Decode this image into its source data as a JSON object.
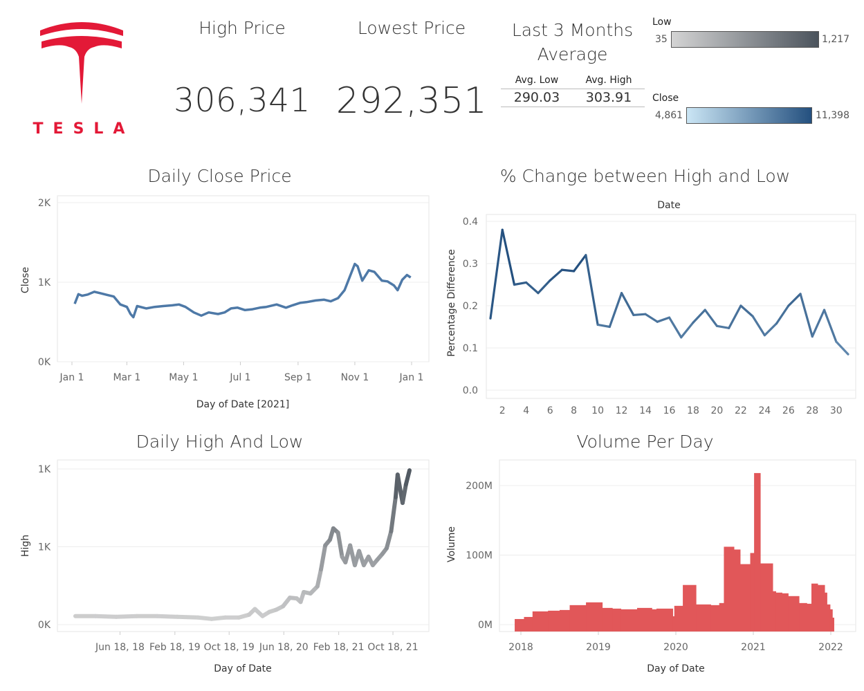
{
  "brand": {
    "wordmark": "TESLA",
    "color": "#e31937"
  },
  "kpis": {
    "high_title": "High Price",
    "high_value": "306,341",
    "low_title": "Lowest Price",
    "low_value": "292,351",
    "avg_title_line1": "Last 3 Months",
    "avg_title_line2": "Average",
    "avg_low_label": "Avg. Low",
    "avg_high_label": "Avg. High",
    "avg_low_value": "290.03",
    "avg_high_value": "303.91"
  },
  "legends": {
    "low": {
      "title": "Low",
      "min": "35",
      "max": "1,217",
      "color_from": "#d4d4d4",
      "color_to": "#4b535c"
    },
    "close": {
      "title": "Close",
      "min": "4,861",
      "max": "11,398",
      "color_from": "#cbe6f5",
      "color_to": "#24507f"
    }
  },
  "chart_data": [
    {
      "id": "close",
      "type": "line",
      "title": "Daily Close Price",
      "xlabel": "Day of Date [2021]",
      "ylabel": "Close",
      "yticks": [
        "0K",
        "1K",
        "2K"
      ],
      "ylim": [
        0,
        2000
      ],
      "xticks": [
        "Jan 1",
        "Mar 1",
        "May 1",
        "Jul 1",
        "Sep 1",
        "Nov 1",
        "Jan 1"
      ],
      "color": "#4e79a7",
      "x": [
        "2021-01-04",
        "2021-01-08",
        "2021-01-12",
        "2021-01-18",
        "2021-01-25",
        "2021-02-01",
        "2021-02-08",
        "2021-02-15",
        "2021-02-22",
        "2021-03-01",
        "2021-03-05",
        "2021-03-08",
        "2021-03-12",
        "2021-03-22",
        "2021-03-31",
        "2021-04-09",
        "2021-04-19",
        "2021-04-26",
        "2021-05-03",
        "2021-05-12",
        "2021-05-20",
        "2021-05-28",
        "2021-06-07",
        "2021-06-14",
        "2021-06-21",
        "2021-06-28",
        "2021-07-06",
        "2021-07-14",
        "2021-07-22",
        "2021-07-29",
        "2021-08-09",
        "2021-08-19",
        "2021-08-26",
        "2021-09-03",
        "2021-09-10",
        "2021-09-20",
        "2021-09-29",
        "2021-10-06",
        "2021-10-14",
        "2021-10-21",
        "2021-10-25",
        "2021-11-01",
        "2021-11-04",
        "2021-11-09",
        "2021-11-16",
        "2021-11-22",
        "2021-11-30",
        "2021-12-06",
        "2021-12-13",
        "2021-12-17",
        "2021-12-22",
        "2021-12-27",
        "2021-12-31"
      ],
      "y": [
        729,
        850,
        830,
        845,
        880,
        860,
        840,
        820,
        720,
        690,
        600,
        560,
        700,
        670,
        690,
        700,
        710,
        720,
        690,
        620,
        580,
        620,
        600,
        620,
        670,
        680,
        650,
        660,
        680,
        690,
        720,
        680,
        710,
        740,
        750,
        770,
        780,
        760,
        800,
        900,
        1020,
        1230,
        1200,
        1020,
        1150,
        1130,
        1020,
        1010,
        960,
        900,
        1030,
        1090,
        1060
      ]
    },
    {
      "id": "pct",
      "type": "line",
      "title": "% Change between High and Low",
      "xlabel": "Date",
      "ylabel": "Percentage Difference",
      "yticks": [
        "0.0",
        "0.1",
        "0.2",
        "0.3",
        "0.4"
      ],
      "ylim": [
        0,
        0.4
      ],
      "xticks": [
        "2",
        "4",
        "6",
        "8",
        "10",
        "12",
        "14",
        "16",
        "18",
        "20",
        "22",
        "24",
        "26",
        "28",
        "30"
      ],
      "color_from": "#aacde6",
      "color_to": "#24507f",
      "x": [
        1,
        2,
        3,
        4,
        5,
        6,
        7,
        8,
        9,
        10,
        11,
        12,
        13,
        14,
        15,
        16,
        17,
        18,
        19,
        20,
        21,
        22,
        23,
        24,
        25,
        26,
        27,
        28,
        29,
        30,
        31
      ],
      "y": [
        0.17,
        0.38,
        0.25,
        0.255,
        0.23,
        0.26,
        0.285,
        0.282,
        0.32,
        0.155,
        0.15,
        0.23,
        0.178,
        0.18,
        0.162,
        0.172,
        0.125,
        0.16,
        0.19,
        0.152,
        0.147,
        0.2,
        0.175,
        0.13,
        0.158,
        0.2,
        0.228,
        0.127,
        0.19,
        0.115,
        0.085
      ]
    },
    {
      "id": "highlow",
      "type": "line",
      "title": "Daily High And Low",
      "xlabel": "Day of Date",
      "ylabel": "High",
      "yticks": [
        "0K",
        "1K",
        "1K"
      ],
      "ylim": [
        0,
        1100
      ],
      "xticks": [
        "Jun 18, 18",
        "Feb 18, 19",
        "Oct 18, 19",
        "Jun 18, 20",
        "Feb 18, 21",
        "Oct 18, 21"
      ],
      "color_from": "#d4d4d4",
      "color_to": "#4b535c",
      "x": [
        "2017-12-01",
        "2018-03-01",
        "2018-06-01",
        "2018-09-01",
        "2018-12-01",
        "2019-03-01",
        "2019-06-01",
        "2019-08-01",
        "2019-10-01",
        "2019-12-01",
        "2020-01-15",
        "2020-02-10",
        "2020-03-15",
        "2020-04-15",
        "2020-05-15",
        "2020-06-15",
        "2020-07-15",
        "2020-08-15",
        "2020-09-01",
        "2020-09-15",
        "2020-10-15",
        "2020-11-15",
        "2020-12-01",
        "2020-12-20",
        "2021-01-10",
        "2021-01-25",
        "2021-02-15",
        "2021-03-05",
        "2021-03-20",
        "2021-04-10",
        "2021-05-01",
        "2021-05-20",
        "2021-06-10",
        "2021-07-01",
        "2021-07-20",
        "2021-08-10",
        "2021-09-01",
        "2021-09-20",
        "2021-10-10",
        "2021-10-30",
        "2021-11-08",
        "2021-11-30",
        "2021-12-15",
        "2021-12-31"
      ],
      "y": [
        60,
        60,
        55,
        60,
        60,
        55,
        50,
        40,
        50,
        50,
        70,
        110,
        60,
        90,
        105,
        130,
        190,
        185,
        160,
        230,
        220,
        270,
        390,
        560,
        600,
        680,
        650,
        480,
        440,
        560,
        420,
        520,
        420,
        480,
        420,
        460,
        500,
        540,
        660,
        900,
        1060,
        860,
        990,
        1090
      ]
    },
    {
      "id": "volume",
      "type": "bar",
      "title": "Volume Per Day",
      "xlabel": "Day of Date",
      "ylabel": "Volume",
      "yticks": [
        "0M",
        "100M",
        "200M"
      ],
      "ylim": [
        0,
        230000000
      ],
      "xticks": [
        "2018",
        "2019",
        "2020",
        "2021",
        "2022"
      ],
      "color": "#e15759",
      "start": [
        2017.92,
        2018.04,
        2018.15,
        2018.35,
        2018.5,
        2018.63,
        2018.84,
        2019.05,
        2019.18,
        2019.29,
        2019.5,
        2019.69,
        2019.75,
        2019.96,
        2019.98,
        2020.09,
        2020.26,
        2020.45,
        2020.56,
        2020.62,
        2020.65,
        2020.75,
        2020.83,
        2020.96,
        2021.01,
        2021.09,
        2021.25,
        2021.29,
        2021.37,
        2021.45,
        2021.59,
        2021.69,
        2021.75,
        2021.83,
        2021.92,
        2021.95,
        2021.99,
        2022.02
      ],
      "end": [
        2018.04,
        2018.15,
        2018.35,
        2018.5,
        2018.63,
        2018.84,
        2019.05,
        2019.18,
        2019.29,
        2019.5,
        2019.69,
        2019.75,
        2019.96,
        2019.98,
        2020.09,
        2020.26,
        2020.45,
        2020.56,
        2020.62,
        2020.65,
        2020.75,
        2020.83,
        2020.96,
        2021.01,
        2021.09,
        2021.25,
        2021.29,
        2021.37,
        2021.45,
        2021.59,
        2021.69,
        2021.75,
        2021.83,
        2021.92,
        2021.95,
        2021.99,
        2022.02,
        2022.04
      ],
      "values": [
        8000000,
        11000000,
        19000000,
        20000000,
        21000000,
        28000000,
        32000000,
        24000000,
        23000000,
        22000000,
        24000000,
        22000000,
        23000000,
        12000000,
        27000000,
        57000000,
        29000000,
        28000000,
        31000000,
        112000000,
        112000000,
        108000000,
        87000000,
        103000000,
        218000000,
        88000000,
        48000000,
        46000000,
        45000000,
        41000000,
        31000000,
        30000000,
        59000000,
        57000000,
        46000000,
        29000000,
        22000000,
        10000000
      ]
    }
  ]
}
